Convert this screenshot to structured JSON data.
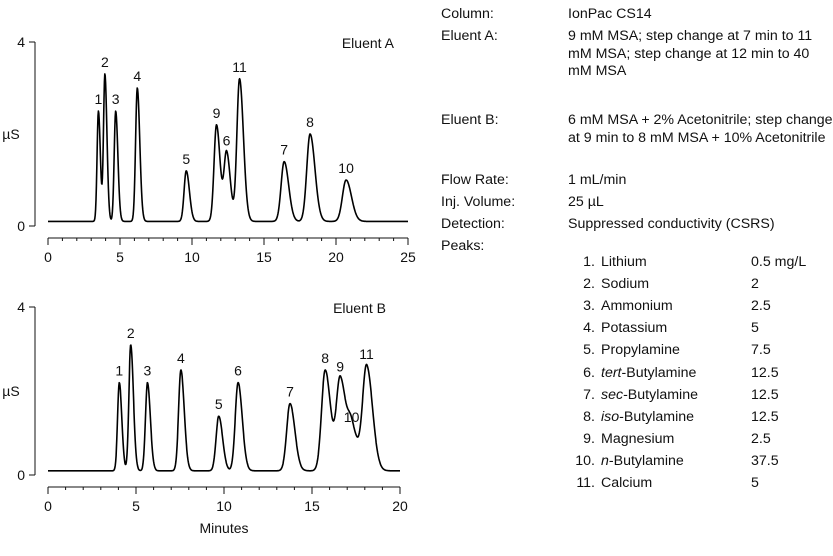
{
  "conditions": [
    {
      "label": "Column:",
      "value": "IonPac CS14"
    },
    {
      "label": "Eluent A:",
      "value": "9 mM MSA; step change at 7 min to 11 mM MSA; step change at 12 min to 40 mM MSA"
    },
    {
      "label": "Eluent B:",
      "value": "6 mM MSA + 2% Acetonitrile; step change at 9 min to 8 mM MSA + 10% Acetonitrile"
    },
    {
      "label": "Flow Rate:",
      "value": "1 mL/min"
    },
    {
      "label": "Inj. Volume:",
      "value": "25 µL"
    },
    {
      "label": "Detection:",
      "value": "Suppressed conductivity (CSRS)"
    },
    {
      "label": "Peaks:",
      "value": ""
    }
  ],
  "peaks": [
    {
      "num": "1.",
      "prefix": "",
      "name": "Lithium",
      "conc": "0.5 mg/L"
    },
    {
      "num": "2.",
      "prefix": "",
      "name": "Sodium",
      "conc": "2"
    },
    {
      "num": "3.",
      "prefix": "",
      "name": "Ammonium",
      "conc": "2.5"
    },
    {
      "num": "4.",
      "prefix": "",
      "name": "Potassium",
      "conc": "5"
    },
    {
      "num": "5.",
      "prefix": "",
      "name": "Propylamine",
      "conc": "7.5"
    },
    {
      "num": "6.",
      "prefix": "tert",
      "name": "-Butylamine",
      "conc": "12.5"
    },
    {
      "num": "7.",
      "prefix": "sec",
      "name": "-Butylamine",
      "conc": "12.5"
    },
    {
      "num": "8.",
      "prefix": "iso",
      "name": "-Butylamine",
      "conc": "12.5"
    },
    {
      "num": "9.",
      "prefix": "",
      "name": "Magnesium",
      "conc": "2.5"
    },
    {
      "num": "10.",
      "prefix": "n",
      "name": "-Butylamine",
      "conc": "37.5"
    },
    {
      "num": "11.",
      "prefix": "",
      "name": "Calcium",
      "conc": "5"
    }
  ],
  "chart_data": [
    {
      "type": "line",
      "title": "Eluent A",
      "xlabel": "",
      "ylabel": "µS",
      "xlim": [
        0,
        25
      ],
      "ylim": [
        0,
        4
      ],
      "x_ticks": [
        "0",
        "5",
        "10",
        "15",
        "20",
        "25"
      ],
      "y_ticks": [
        "0",
        "4"
      ],
      "baseline": 0.1,
      "peaks": [
        {
          "label": "1",
          "rt": 3.5,
          "height": 2.5
        },
        {
          "label": "2",
          "rt": 3.95,
          "height": 3.3
        },
        {
          "label": "3",
          "rt": 4.7,
          "height": 2.5
        },
        {
          "label": "4",
          "rt": 6.2,
          "height": 3.0
        },
        {
          "label": "5",
          "rt": 9.6,
          "height": 1.2
        },
        {
          "label": "9",
          "rt": 11.7,
          "height": 2.2
        },
        {
          "label": "6",
          "rt": 12.4,
          "height": 1.6
        },
        {
          "label": "11",
          "rt": 13.3,
          "height": 3.2
        },
        {
          "label": "7",
          "rt": 16.4,
          "height": 1.4
        },
        {
          "label": "8",
          "rt": 18.2,
          "height": 2.0
        },
        {
          "label": "10",
          "rt": 20.7,
          "height": 1.0
        }
      ]
    },
    {
      "type": "line",
      "title": "Eluent B",
      "xlabel": "Minutes",
      "ylabel": "µS",
      "xlim": [
        0,
        20
      ],
      "ylim": [
        0,
        4
      ],
      "x_ticks": [
        "0",
        "5",
        "10",
        "15",
        "20"
      ],
      "y_ticks": [
        "0",
        "4"
      ],
      "baseline": 0.1,
      "peaks": [
        {
          "label": "1",
          "rt": 4.05,
          "height": 2.2
        },
        {
          "label": "2",
          "rt": 4.7,
          "height": 3.1
        },
        {
          "label": "3",
          "rt": 5.65,
          "height": 2.2
        },
        {
          "label": "4",
          "rt": 7.55,
          "height": 2.5
        },
        {
          "label": "5",
          "rt": 9.7,
          "height": 1.4
        },
        {
          "label": "6",
          "rt": 10.8,
          "height": 2.2
        },
        {
          "label": "7",
          "rt": 13.75,
          "height": 1.7
        },
        {
          "label": "8",
          "rt": 15.75,
          "height": 2.5
        },
        {
          "label": "9",
          "rt": 16.6,
          "height": 2.3
        },
        {
          "label": "10",
          "rt": 17.25,
          "height": 1.1
        },
        {
          "label": "11",
          "rt": 18.1,
          "height": 2.6
        }
      ]
    }
  ]
}
